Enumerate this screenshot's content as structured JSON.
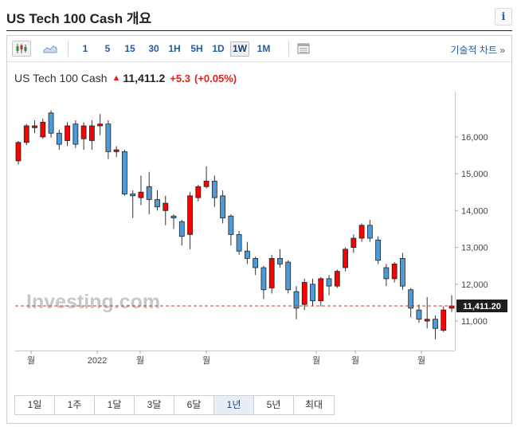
{
  "header": {
    "title": "US Tech 100 Cash 개요",
    "info_label": "i"
  },
  "toolbar": {
    "chart_type_icons": [
      "candlestick-icon",
      "area-chart-icon"
    ],
    "intervals": [
      {
        "label": "1",
        "active": false
      },
      {
        "label": "5",
        "active": false
      },
      {
        "label": "15",
        "active": false
      },
      {
        "label": "30",
        "active": false
      },
      {
        "label": "1H",
        "active": false
      },
      {
        "label": "5H",
        "active": false
      },
      {
        "label": "1D",
        "active": false
      },
      {
        "label": "1W",
        "active": true
      },
      {
        "label": "1M",
        "active": false
      }
    ],
    "settings_icon": "table-icon",
    "technical_chart_link": "기술적 차트 »"
  },
  "quote": {
    "name": "US Tech 100 Cash",
    "direction_icon": "up-arrow-icon",
    "last": "11,411.2",
    "change": "+5.3",
    "change_pct": "(+0.05%)"
  },
  "chart_data": {
    "type": "candlestick",
    "yaxis_ticks": [
      "16,000",
      "15,000",
      "14,000",
      "13,000",
      "12,000",
      "11,000"
    ],
    "ylim": [
      10200,
      17100
    ],
    "current_price": 11411.2,
    "current_price_label": "11,411.20",
    "xaxis_ticks": [
      "월",
      "2022",
      "월",
      "월",
      "월",
      "월",
      "월"
    ],
    "watermark": "Investing.com",
    "colors": {
      "up": "#ff0000",
      "down": "#4d9ad6",
      "price_line": "#c0392b"
    },
    "candles": [
      [
        15350,
        15850,
        15250,
        15890
      ],
      [
        15850,
        16300,
        15780,
        16350
      ],
      [
        16250,
        16300,
        16100,
        16450
      ],
      [
        16000,
        16400,
        15950,
        16500
      ],
      [
        16650,
        16100,
        15980,
        16720
      ],
      [
        16100,
        15800,
        15650,
        16200
      ],
      [
        15900,
        16300,
        15750,
        16400
      ],
      [
        16350,
        15800,
        15700,
        16450
      ],
      [
        15950,
        16300,
        15650,
        16400
      ],
      [
        15900,
        16300,
        15650,
        16450
      ],
      [
        16300,
        16350,
        16050,
        16620
      ],
      [
        16350,
        15600,
        15400,
        16450
      ],
      [
        15600,
        15650,
        15450,
        15750
      ],
      [
        15600,
        14450,
        14400,
        15650
      ],
      [
        14450,
        14400,
        13800,
        14550
      ],
      [
        14350,
        14500,
        14150,
        14950
      ],
      [
        14650,
        14300,
        13900,
        15050
      ],
      [
        14300,
        14100,
        14000,
        14550
      ],
      [
        14000,
        14200,
        13600,
        14400
      ],
      [
        13850,
        13800,
        13500,
        13900
      ],
      [
        13700,
        13300,
        13050,
        13750
      ],
      [
        13350,
        14400,
        12950,
        14500
      ],
      [
        14350,
        14650,
        14250,
        14700
      ],
      [
        14650,
        14800,
        14600,
        15200
      ],
      [
        14800,
        14350,
        14100,
        14950
      ],
      [
        14400,
        13800,
        13650,
        14550
      ],
      [
        13850,
        13350,
        13050,
        13900
      ],
      [
        13350,
        12900,
        12800,
        13450
      ],
      [
        12900,
        12700,
        12550,
        13150
      ],
      [
        12700,
        12450,
        12250,
        12750
      ],
      [
        12450,
        11850,
        11600,
        12500
      ],
      [
        11900,
        12700,
        11750,
        12800
      ],
      [
        12700,
        12550,
        12450,
        12950
      ],
      [
        12600,
        11850,
        11750,
        12650
      ],
      [
        11800,
        11350,
        11050,
        11950
      ],
      [
        11450,
        12050,
        11300,
        12150
      ],
      [
        12000,
        11550,
        11400,
        12150
      ],
      [
        11550,
        12150,
        11400,
        12200
      ],
      [
        12150,
        11950,
        11700,
        12250
      ],
      [
        11950,
        12350,
        11900,
        12400
      ],
      [
        12450,
        12950,
        12350,
        13000
      ],
      [
        13000,
        13250,
        12850,
        13350
      ],
      [
        13250,
        13600,
        13150,
        13650
      ],
      [
        13600,
        13250,
        13150,
        13750
      ],
      [
        13200,
        12650,
        12550,
        13300
      ],
      [
        12450,
        12150,
        11950,
        12550
      ],
      [
        12150,
        12550,
        12050,
        12600
      ],
      [
        12700,
        11950,
        11850,
        12850
      ],
      [
        11850,
        11350,
        11100,
        11900
      ],
      [
        11300,
        11050,
        10950,
        11450
      ],
      [
        11000,
        11050,
        10800,
        11650
      ],
      [
        11050,
        10800,
        10500,
        11150
      ],
      [
        10750,
        11300,
        10700,
        11400
      ],
      [
        11350,
        11411,
        11250,
        11700
      ]
    ]
  },
  "ranges": [
    {
      "label": "1일",
      "active": false
    },
    {
      "label": "1주",
      "active": false
    },
    {
      "label": "1달",
      "active": false
    },
    {
      "label": "3달",
      "active": false
    },
    {
      "label": "6달",
      "active": false
    },
    {
      "label": "1년",
      "active": true
    },
    {
      "label": "5년",
      "active": false
    },
    {
      "label": "최대",
      "active": false
    }
  ]
}
